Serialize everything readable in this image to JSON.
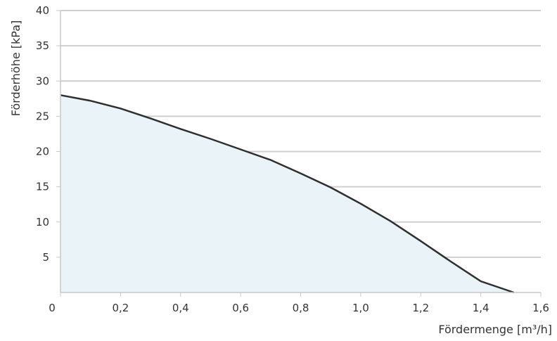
{
  "chart_data": {
    "type": "area",
    "title": "",
    "xlabel": "Fördermenge [m³/h]",
    "ylabel": "Förderhöhe [kPa]",
    "xlim": [
      0,
      1.6
    ],
    "ylim": [
      0,
      40
    ],
    "x_tick_labels": [
      "0",
      "0,2",
      "0,4",
      "0,6",
      "0,8",
      "1,0",
      "1,2",
      "1,4",
      "1,6"
    ],
    "y_tick_labels": [
      "5",
      "10",
      "15",
      "20",
      "25",
      "30",
      "35",
      "40"
    ],
    "grid": true,
    "series": [
      {
        "x": [
          0,
          0.1,
          0.2,
          0.3,
          0.4,
          0.5,
          0.6,
          0.7,
          0.8,
          0.9,
          1.0,
          1.1,
          1.2,
          1.3,
          1.4,
          1.51
        ],
        "y": [
          28,
          27.2,
          26.1,
          24.7,
          23.2,
          21.8,
          20.3,
          18.8,
          16.9,
          14.9,
          12.6,
          10.1,
          7.3,
          4.4,
          1.6,
          0
        ]
      }
    ],
    "colors": {
      "line": "#2f2f2f",
      "fill": "#eaf3f7",
      "grid": "#cfcfcf",
      "axis": "#c8c8c8"
    }
  }
}
